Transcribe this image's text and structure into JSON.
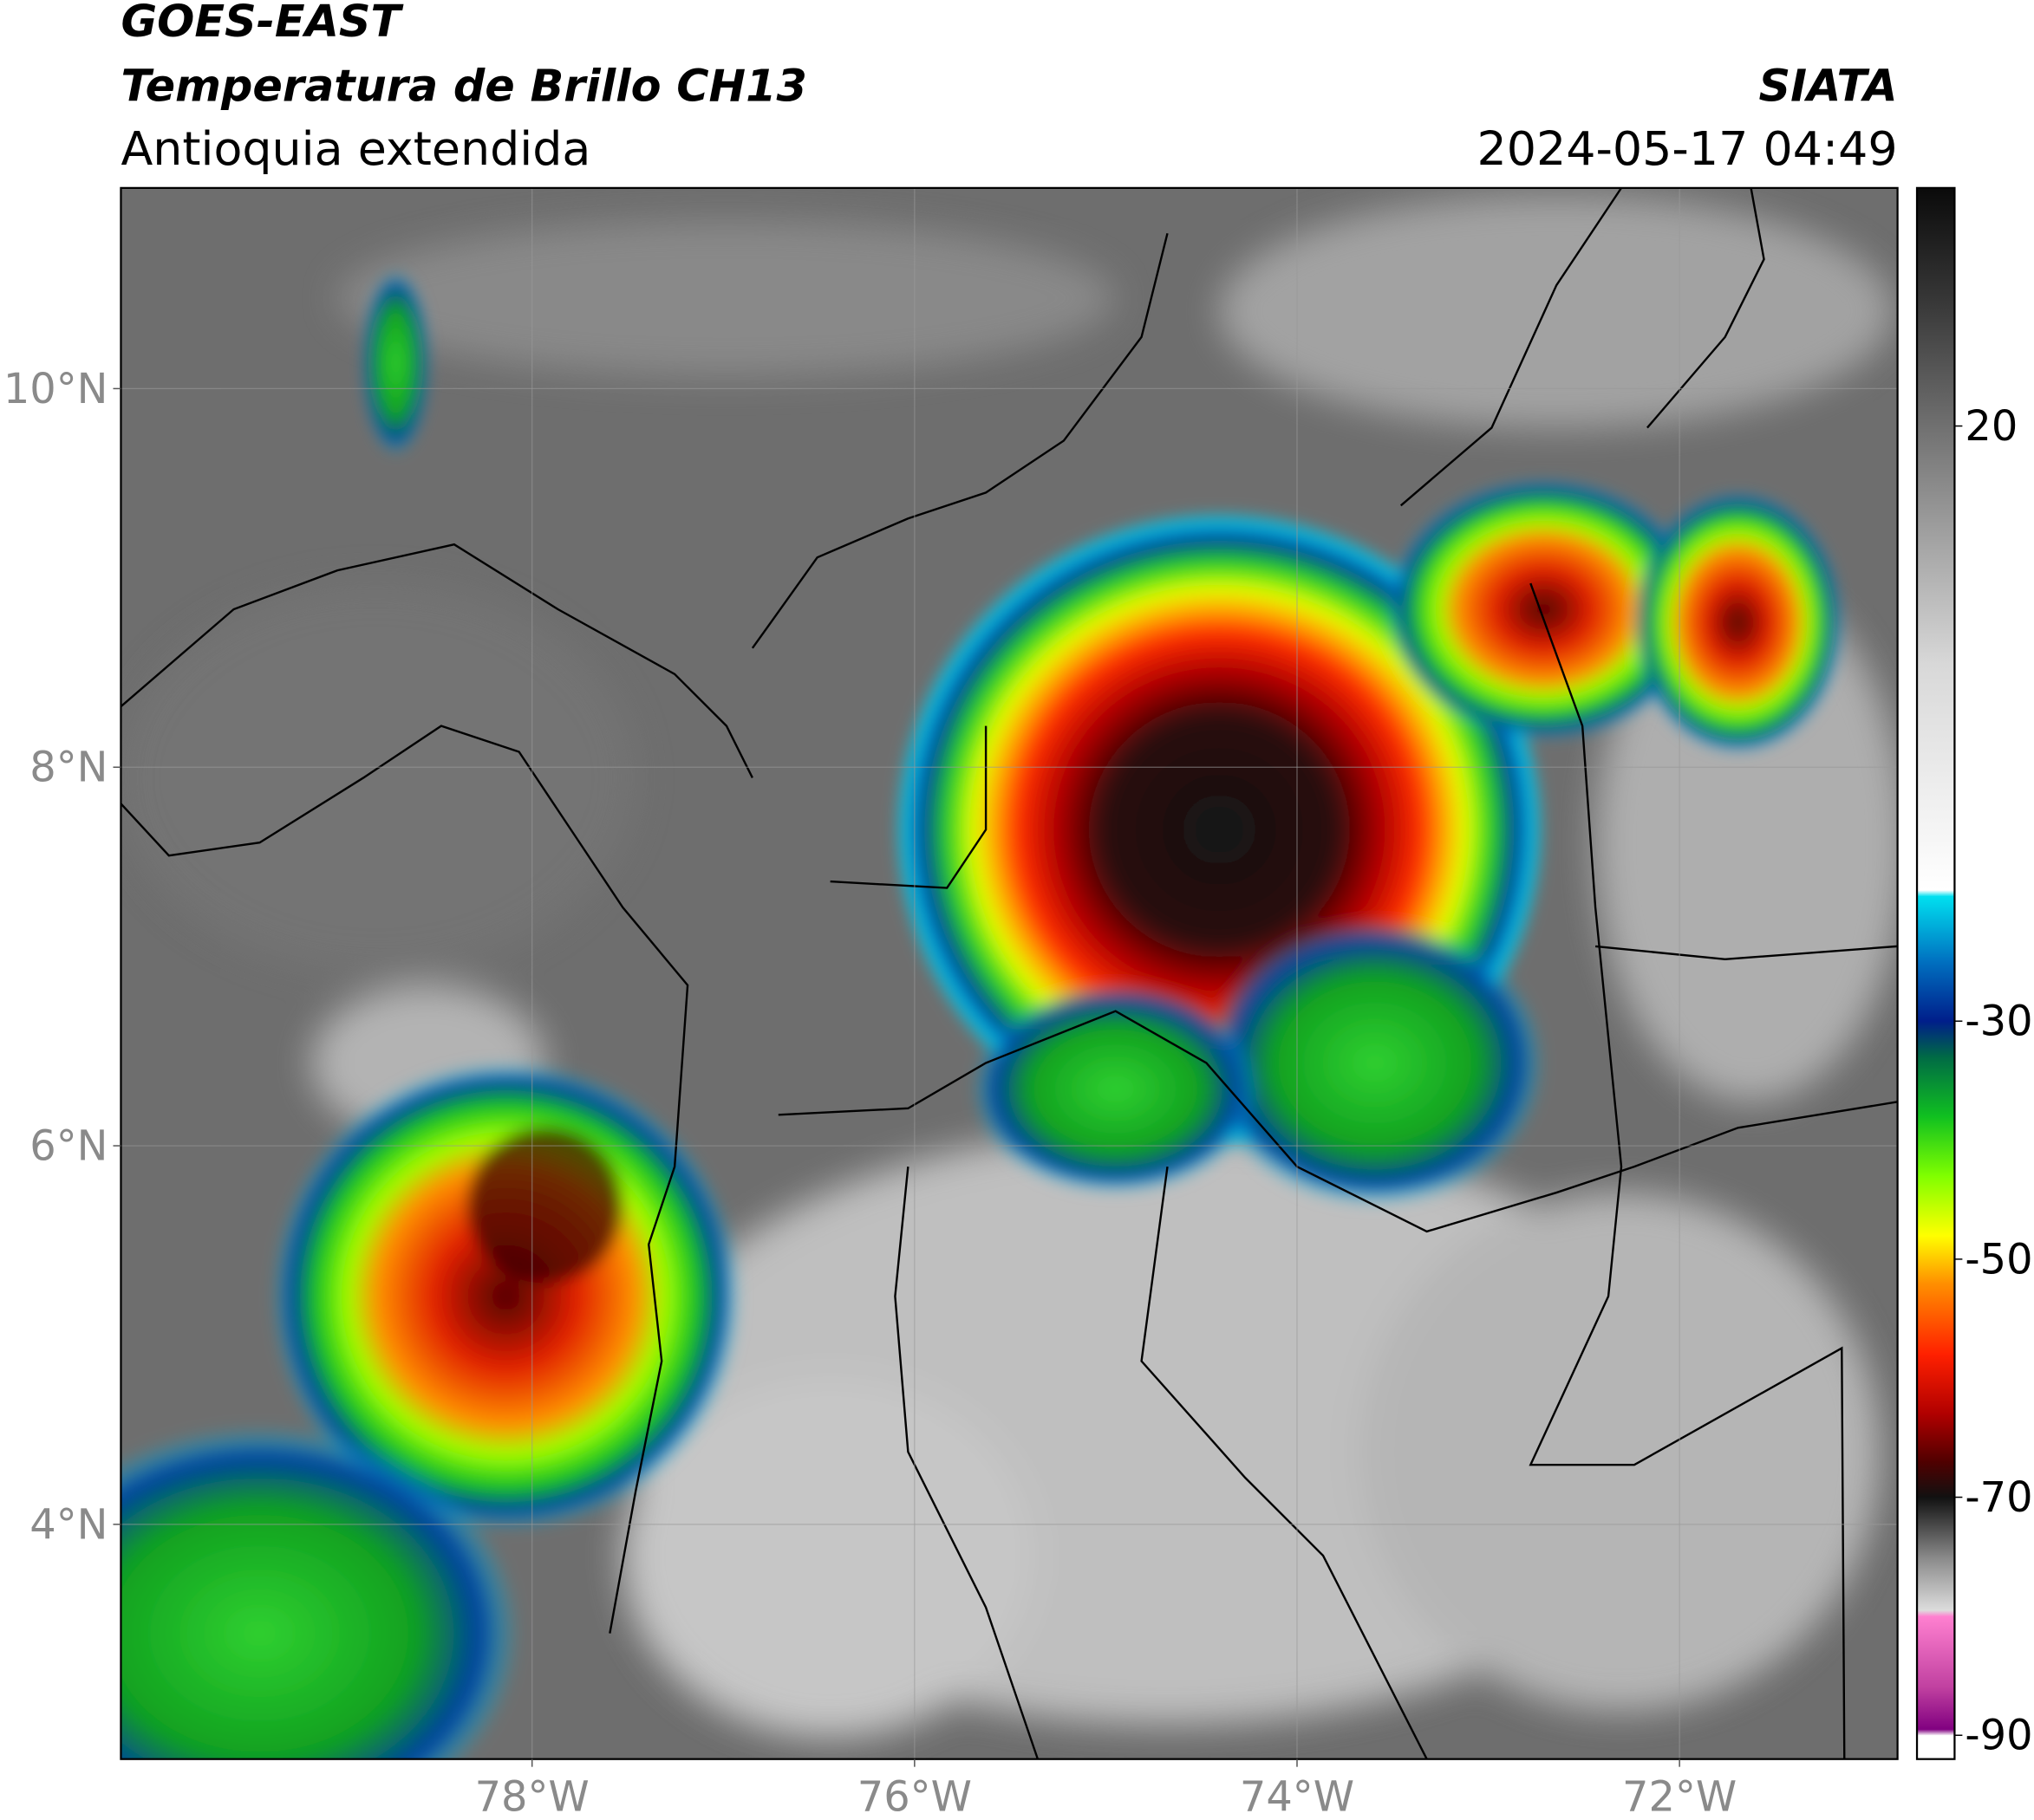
{
  "header": {
    "title": "GOES-EAST",
    "product": "Temperatura de Brillo CH13",
    "region": "Antioquia extendida",
    "source": "SIATA",
    "datetime": "2024-05-17 04:49"
  },
  "map": {
    "xlim": [
      -80.15,
      -70.86
    ],
    "ylim": [
      2.76,
      11.06
    ],
    "xticks": [
      {
        "value": -78,
        "label": "78°W"
      },
      {
        "value": -76,
        "label": "76°W"
      },
      {
        "value": -74,
        "label": "74°W"
      },
      {
        "value": -72,
        "label": "72°W"
      }
    ],
    "yticks": [
      {
        "value": 4,
        "label": "4°N"
      },
      {
        "value": 6,
        "label": "6°N"
      },
      {
        "value": 8,
        "label": "8°N"
      },
      {
        "value": 10,
        "label": "10°N"
      }
    ],
    "grid": true
  },
  "colorbar": {
    "lim": [
      -92,
      40
    ],
    "ticks": [
      20,
      -30,
      -50,
      -70,
      -90
    ],
    "stops": [
      {
        "value": 40,
        "color": "#0a0a0a"
      },
      {
        "value": 30,
        "color": "#3a3a3a"
      },
      {
        "value": 20,
        "color": "#707070"
      },
      {
        "value": 10,
        "color": "#a5a5a5"
      },
      {
        "value": 0,
        "color": "#d8d8d8"
      },
      {
        "value": -19,
        "color": "#ffffff"
      },
      {
        "value": -19.5,
        "color": "#00e0f0"
      },
      {
        "value": -25,
        "color": "#0070c0"
      },
      {
        "value": -30,
        "color": "#001e8a"
      },
      {
        "value": -33,
        "color": "#006a45"
      },
      {
        "value": -38,
        "color": "#10c020"
      },
      {
        "value": -43,
        "color": "#80ff00"
      },
      {
        "value": -48,
        "color": "#ffff00"
      },
      {
        "value": -52,
        "color": "#ff9000"
      },
      {
        "value": -58,
        "color": "#ff2000"
      },
      {
        "value": -63,
        "color": "#b00000"
      },
      {
        "value": -67,
        "color": "#500000"
      },
      {
        "value": -70,
        "color": "#111111"
      },
      {
        "value": -75,
        "color": "#888888"
      },
      {
        "value": -79.5,
        "color": "#dddddd"
      },
      {
        "value": -80,
        "color": "#ff80d0"
      },
      {
        "value": -86,
        "color": "#c040a0"
      },
      {
        "value": -89.5,
        "color": "#800080"
      },
      {
        "value": -90,
        "color": "#ffffff"
      },
      {
        "value": -92,
        "color": "#ffffff"
      }
    ]
  }
}
